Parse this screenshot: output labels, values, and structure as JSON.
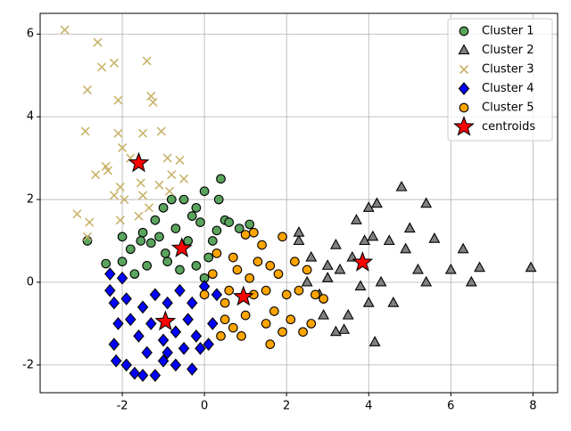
{
  "chart_data": {
    "type": "scatter",
    "xlim": [
      -4.0,
      8.6
    ],
    "ylim": [
      -2.67,
      6.5
    ],
    "xticks": [
      -2,
      0,
      2,
      4,
      6,
      8
    ],
    "yticks": [
      -2,
      0,
      2,
      4,
      6
    ],
    "grid": true,
    "legend": "upper right",
    "series": [
      {
        "name": "Cluster 1",
        "color": "#5aa45e",
        "marker": "circle",
        "x": [
          -2.85,
          -2.4,
          -2.0,
          -2.0,
          -1.8,
          -1.5,
          -1.3,
          -1.2,
          -1.0,
          -0.8,
          -0.5,
          -0.3,
          0.0,
          0.4,
          0.35,
          0.5,
          0.6,
          0.85,
          1.1,
          0.2,
          0.1,
          -0.2,
          -0.6,
          -0.9,
          -1.4,
          -1.7,
          -1.1,
          -0.7,
          -0.4,
          0.0,
          -0.2,
          -1.55,
          0.3,
          -0.1,
          -0.95
        ],
        "y": [
          1.0,
          0.45,
          0.5,
          1.1,
          0.8,
          1.2,
          0.95,
          1.5,
          1.8,
          2.0,
          2.0,
          1.6,
          2.2,
          2.5,
          2.0,
          1.5,
          1.45,
          1.3,
          1.4,
          1.0,
          0.6,
          0.4,
          0.3,
          0.5,
          0.4,
          0.2,
          1.1,
          1.3,
          1.0,
          0.1,
          1.8,
          1.0,
          1.25,
          1.45,
          0.7
        ]
      },
      {
        "name": "Cluster 2",
        "color": "#808080",
        "marker": "triangle",
        "x": [
          2.3,
          2.3,
          2.6,
          2.5,
          2.8,
          3.0,
          3.2,
          3.3,
          3.5,
          3.4,
          3.2,
          3.6,
          3.7,
          3.9,
          4.0,
          4.2,
          4.1,
          4.0,
          4.15,
          4.3,
          4.5,
          4.6,
          4.8,
          5.0,
          4.9,
          5.2,
          5.4,
          5.6,
          5.4,
          6.0,
          6.3,
          6.5,
          6.7,
          7.95,
          3.8,
          2.9,
          3.0
        ],
        "y": [
          1.0,
          1.2,
          0.6,
          0.0,
          -0.3,
          0.1,
          0.9,
          0.3,
          -0.8,
          -1.15,
          -1.2,
          0.6,
          1.5,
          1.0,
          1.8,
          1.9,
          1.1,
          -0.5,
          -1.45,
          0.0,
          1.0,
          -0.5,
          2.3,
          1.3,
          0.8,
          0.3,
          0.0,
          1.05,
          1.9,
          0.3,
          0.8,
          0.0,
          0.35,
          0.35,
          -0.1,
          -0.8,
          0.4
        ]
      },
      {
        "name": "Cluster 3",
        "color": "#c9b46a",
        "marker": "x",
        "x": [
          -3.4,
          -2.6,
          -2.5,
          -2.2,
          -1.4,
          -2.85,
          -2.1,
          -1.3,
          -1.25,
          -1.05,
          -2.9,
          -2.1,
          -1.5,
          -2.0,
          -1.8,
          -0.9,
          -0.6,
          -2.4,
          -2.35,
          -2.65,
          -1.55,
          -0.5,
          -0.8,
          -2.05,
          -1.1,
          -2.2,
          -1.5,
          -3.1,
          -2.05,
          -1.6,
          -2.8,
          -2.85,
          -1.35,
          -0.85,
          -1.95
        ],
        "y": [
          6.1,
          5.8,
          5.2,
          5.3,
          5.35,
          4.65,
          4.4,
          4.5,
          4.35,
          3.65,
          3.65,
          3.6,
          3.6,
          3.25,
          3.0,
          3.0,
          2.95,
          2.8,
          2.7,
          2.6,
          2.4,
          2.5,
          2.6,
          2.3,
          2.35,
          2.1,
          2.1,
          1.65,
          1.5,
          1.6,
          1.45,
          1.1,
          1.8,
          2.2,
          2.0
        ]
      },
      {
        "name": "Cluster 4",
        "color": "#0000ff",
        "marker": "diamond",
        "x": [
          -2.3,
          -2.3,
          -2.0,
          -2.2,
          -2.1,
          -2.2,
          -2.15,
          -1.9,
          -1.7,
          -1.5,
          -1.2,
          -1.0,
          -0.7,
          -0.3,
          -0.1,
          0.1,
          0.2,
          0.3,
          0.0,
          -0.3,
          -0.6,
          -0.9,
          -1.2,
          -1.5,
          -1.8,
          -1.6,
          -1.3,
          -1.0,
          -0.7,
          -0.4,
          -0.2,
          -1.4,
          -0.9,
          -1.9,
          -0.5
        ],
        "y": [
          -0.2,
          0.2,
          0.1,
          -0.5,
          -1.0,
          -1.5,
          -1.9,
          -2.0,
          -2.2,
          -2.25,
          -2.25,
          -1.9,
          -2.0,
          -2.1,
          -1.6,
          -1.5,
          -1.0,
          -0.3,
          -0.1,
          -0.5,
          -0.2,
          -0.5,
          -0.3,
          -0.6,
          -0.9,
          -1.3,
          -1.0,
          -1.4,
          -1.2,
          -0.9,
          -1.3,
          -1.7,
          -1.7,
          -0.4,
          -1.6
        ]
      },
      {
        "name": "Cluster 5",
        "color": "#ffa500",
        "marker": "circle",
        "x": [
          0.0,
          0.2,
          0.3,
          0.5,
          0.5,
          0.4,
          0.7,
          0.8,
          1.0,
          1.2,
          1.0,
          1.2,
          1.3,
          1.5,
          1.6,
          1.4,
          1.8,
          1.9,
          1.7,
          2.0,
          2.1,
          2.2,
          2.3,
          2.4,
          2.6,
          2.7,
          2.9,
          0.7,
          1.1,
          1.6,
          0.9,
          1.9,
          0.6,
          2.5,
          1.5
        ],
        "y": [
          -0.3,
          0.2,
          0.7,
          -0.5,
          -0.9,
          -1.3,
          -1.1,
          0.3,
          1.15,
          1.2,
          -0.8,
          -0.3,
          0.5,
          -1.0,
          -1.5,
          0.9,
          0.2,
          1.1,
          -0.7,
          -0.3,
          -0.9,
          0.5,
          -0.2,
          -1.2,
          -1.0,
          -0.3,
          -0.4,
          0.6,
          0.1,
          0.4,
          -1.3,
          -1.2,
          -0.2,
          0.3,
          -0.2
        ]
      },
      {
        "name": "centroids",
        "color": "#ff0000",
        "marker": "star",
        "x": [
          -1.6,
          -0.55,
          -0.95,
          0.95,
          3.85
        ],
        "y": [
          2.88,
          0.82,
          -0.95,
          -0.35,
          0.48
        ]
      }
    ]
  }
}
